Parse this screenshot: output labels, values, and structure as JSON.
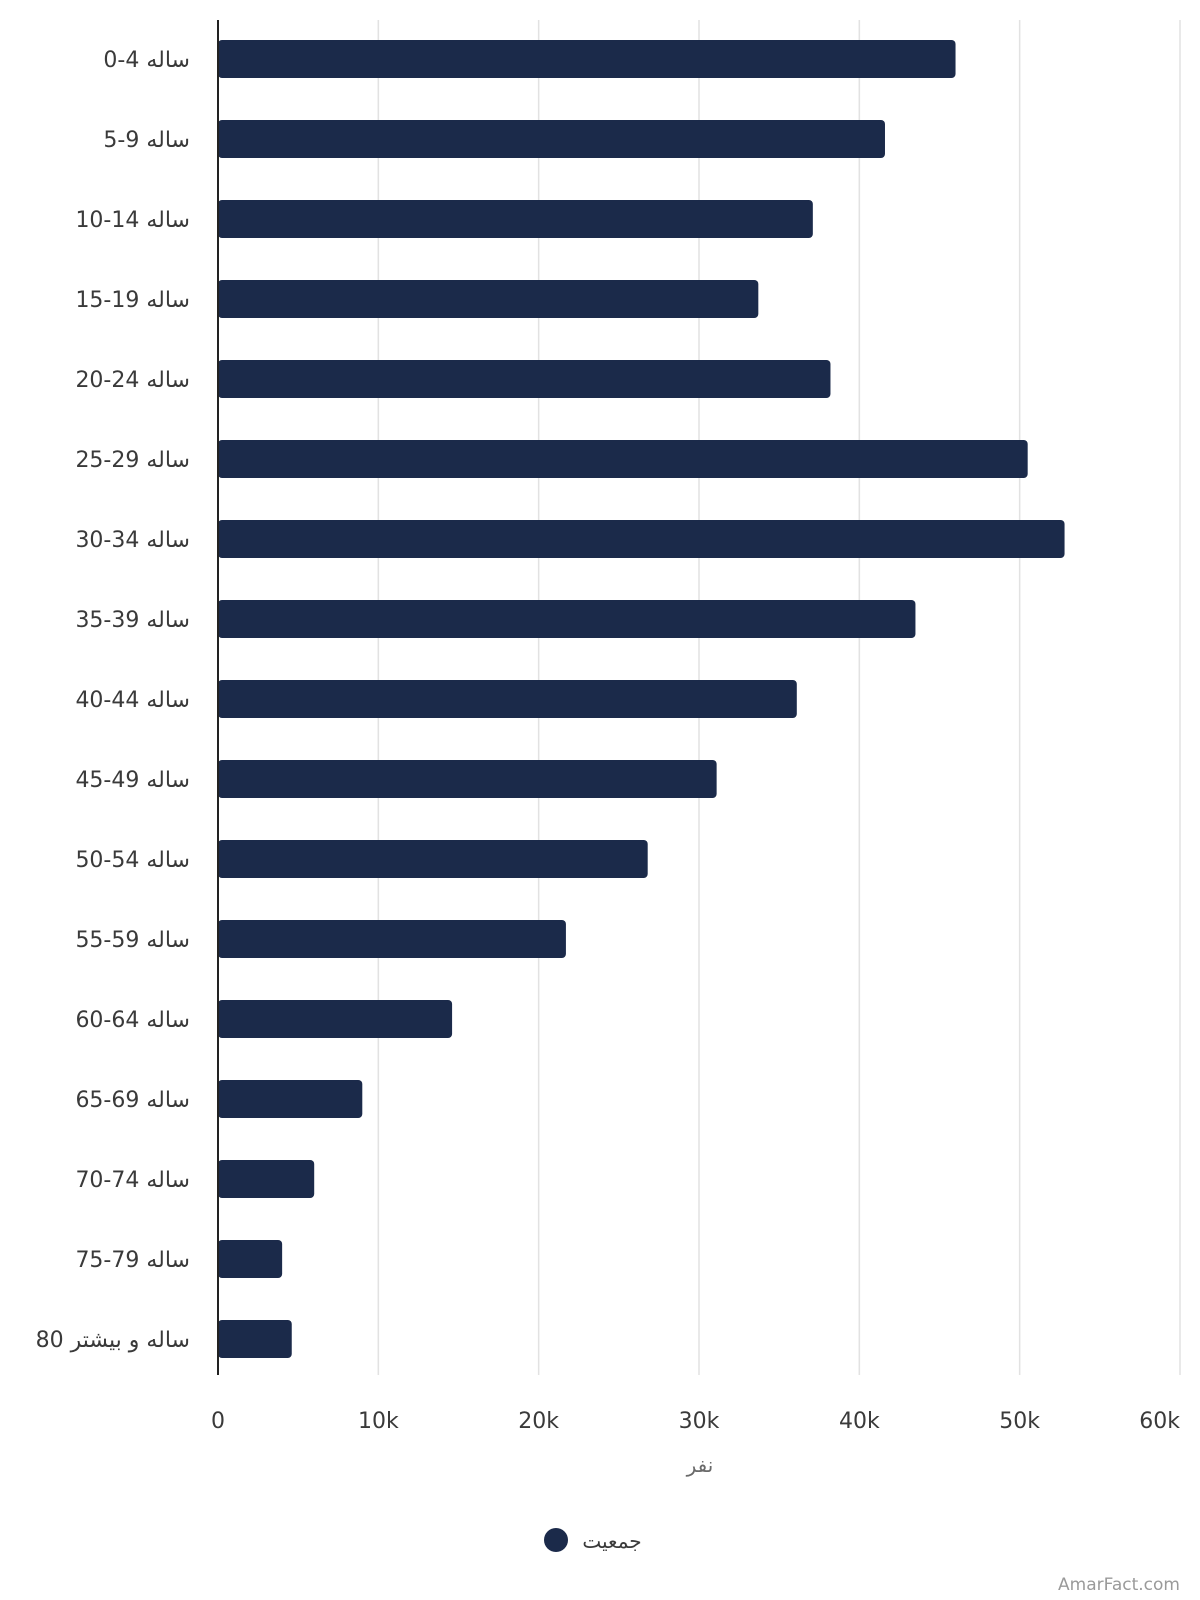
{
  "chart_data": {
    "type": "bar",
    "orientation": "horizontal",
    "categories": [
      "0-4 ساله",
      "5-9 ساله",
      "10-14 ساله",
      "15-19 ساله",
      "20-24 ساله",
      "25-29 ساله",
      "30-34 ساله",
      "35-39 ساله",
      "40-44 ساله",
      "45-49 ساله",
      "50-54 ساله",
      "55-59 ساله",
      "60-64 ساله",
      "65-69 ساله",
      "70-74 ساله",
      "75-79 ساله",
      "80 ساله و بیشتر"
    ],
    "series": [
      {
        "name": "جمعیت",
        "color": "#1b2a4a",
        "values": [
          46000,
          41600,
          37100,
          33700,
          38200,
          50500,
          52800,
          43500,
          36100,
          31100,
          26800,
          21700,
          14600,
          9000,
          6000,
          4000,
          4600
        ]
      }
    ],
    "xlabel": "نفر",
    "ylabel": "",
    "xlim": [
      0,
      60000
    ],
    "x_ticks": [
      0,
      10000,
      20000,
      30000,
      40000,
      50000,
      60000
    ],
    "x_tick_labels": [
      "0",
      "10k",
      "20k",
      "30k",
      "40k",
      "50k",
      "60k"
    ],
    "grid": true,
    "legend_position": "bottom-center"
  },
  "watermark": "AmarFact.com"
}
